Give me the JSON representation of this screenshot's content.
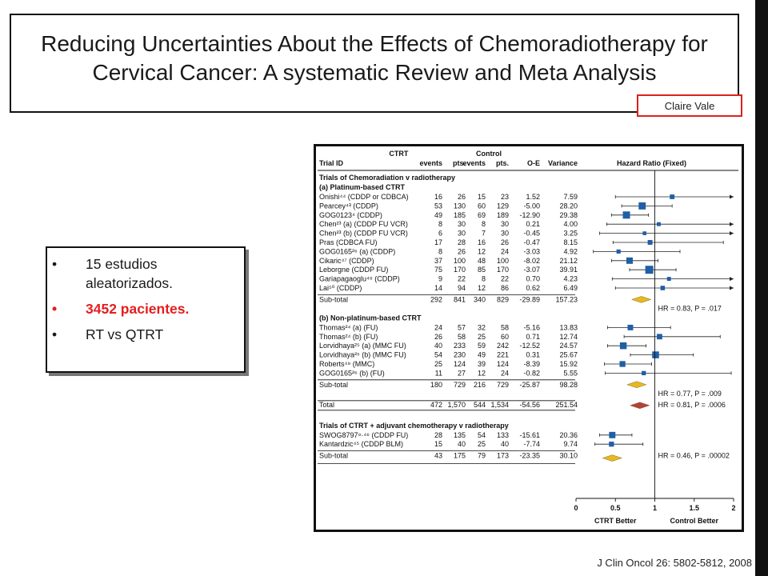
{
  "slide": {
    "title": "Reducing Uncertainties About the Effects of Chemoradiotherapy for Cervical Cancer: A systematic Review and Meta Analysis",
    "author": "Claire Vale",
    "bullets": [
      "15 estudios aleatorizados.",
      "3452 pacientes.",
      "RT vs QTRT"
    ],
    "citation": "J Clin Oncol 26: 5802-5812, 2008",
    "accent_color": "#e31e1e"
  },
  "forest": {
    "headers": {
      "trial_id": "Trial ID",
      "ctrt": "CTRT",
      "control": "Control",
      "events": "events",
      "pts": "pts.",
      "oe": "O-E",
      "variance": "Variance",
      "hr": "Hazard Ratio (Fixed)"
    },
    "section_title": "Trials of Chemoradiation v radiotherapy",
    "groups": [
      {
        "label": "(a) Platinum-based CTRT",
        "rows": [
          {
            "id": "Onishi⁴⁴ (CDDP or CDBCA)",
            "ce": "16",
            "cp": "26",
            "ke": "15",
            "kp": "23",
            "oe": "1.52",
            "var": "7.59",
            "hr": 1.22,
            "lo": 0.5,
            "hi": 2.0
          },
          {
            "id": "Pearcey⁴³ (CDDP)",
            "ce": "53",
            "cp": "130",
            "ke": "60",
            "kp": "129",
            "oe": "-5.00",
            "var": "28.20",
            "hr": 0.84,
            "lo": 0.58,
            "hi": 1.22
          },
          {
            "id": "GOG0123⁴ (CDDP)",
            "ce": "49",
            "cp": "185",
            "ke": "69",
            "kp": "189",
            "oe": "-12.90",
            "var": "29.38",
            "hr": 0.64,
            "lo": 0.45,
            "hi": 0.92
          },
          {
            "id": "Chen²³ (a) (CDDP FU VCR)",
            "ce": "8",
            "cp": "30",
            "ke": "8",
            "kp": "30",
            "oe": "0.21",
            "var": "4.00",
            "hr": 1.05,
            "lo": 0.39,
            "hi": 2.0
          },
          {
            "id": "Chen²³ (b) (CDDP FU VCR)",
            "ce": "6",
            "cp": "30",
            "ke": "7",
            "kp": "30",
            "oe": "-0.45",
            "var": "3.25",
            "hr": 0.87,
            "lo": 0.3,
            "hi": 2.0
          },
          {
            "id": "Pras (CDBCA FU)",
            "ce": "17",
            "cp": "28",
            "ke": "16",
            "kp": "26",
            "oe": "-0.47",
            "var": "8.15",
            "hr": 0.94,
            "lo": 0.47,
            "hi": 1.87
          },
          {
            "id": "GOG0165²⁶ (a) (CDDP)",
            "ce": "8",
            "cp": "26",
            "ke": "12",
            "kp": "24",
            "oe": "-3.03",
            "var": "4.92",
            "hr": 0.54,
            "lo": 0.22,
            "hi": 1.32
          },
          {
            "id": "Cikaric⁴⁷ (CDDP)",
            "ce": "37",
            "cp": "100",
            "ke": "48",
            "kp": "100",
            "oe": "-8.02",
            "var": "21.12",
            "hr": 0.68,
            "lo": 0.45,
            "hi": 1.04
          },
          {
            "id": "Leborgne (CDDP FU)",
            "ce": "75",
            "cp": "170",
            "ke": "85",
            "kp": "170",
            "oe": "-3.07",
            "var": "39.91",
            "hr": 0.93,
            "lo": 0.68,
            "hi": 1.27
          },
          {
            "id": "Gariapagaoglu⁴⁸ (CDDP)",
            "ce": "9",
            "cp": "22",
            "ke": "8",
            "kp": "22",
            "oe": "0.70",
            "var": "4.23",
            "hr": 1.18,
            "lo": 0.46,
            "hi": 2.0
          },
          {
            "id": "Lai⁵⁰ (CDDP)",
            "ce": "14",
            "cp": "94",
            "ke": "12",
            "kp": "86",
            "oe": "0.62",
            "var": "6.49",
            "hr": 1.1,
            "lo": 0.5,
            "hi": 2.0
          }
        ],
        "subtotal": {
          "label": "Sub-total",
          "ce": "292",
          "cp": "841",
          "ke": "340",
          "kp": "829",
          "oe": "-29.89",
          "var": "157.23",
          "hr": 0.83
        },
        "hr_text": "HR = 0.83, P = .017"
      },
      {
        "label": "(b) Non-platinum-based CTRT",
        "rows": [
          {
            "id": "Thomas²⁴ (a) (FU)",
            "ce": "24",
            "cp": "57",
            "ke": "32",
            "kp": "58",
            "oe": "-5.16",
            "var": "13.83",
            "hr": 0.69,
            "lo": 0.4,
            "hi": 1.2
          },
          {
            "id": "Thomas²⁴ (b) (FU)",
            "ce": "26",
            "cp": "58",
            "ke": "25",
            "kp": "60",
            "oe": "0.71",
            "var": "12.74",
            "hr": 1.06,
            "lo": 0.61,
            "hi": 1.83
          },
          {
            "id": "Lorvidhaya²⁵ (a) (MMC FU)",
            "ce": "40",
            "cp": "233",
            "ke": "59",
            "kp": "242",
            "oe": "-12.52",
            "var": "24.57",
            "hr": 0.6,
            "lo": 0.4,
            "hi": 0.89
          },
          {
            "id": "Lorvidhaya²⁵ (b) (MMC FU)",
            "ce": "54",
            "cp": "230",
            "ke": "49",
            "kp": "221",
            "oe": "0.31",
            "var": "25.67",
            "hr": 1.01,
            "lo": 0.69,
            "hi": 1.49
          },
          {
            "id": "Roberts⁴⁹ (MMC)",
            "ce": "25",
            "cp": "124",
            "ke": "39",
            "kp": "124",
            "oe": "-8.39",
            "var": "15.92",
            "hr": 0.59,
            "lo": 0.36,
            "hi": 0.96
          },
          {
            "id": "GOG0165²⁶ (b) (FU)",
            "ce": "11",
            "cp": "27",
            "ke": "12",
            "kp": "24",
            "oe": "-0.82",
            "var": "5.55",
            "hr": 0.86,
            "lo": 0.37,
            "hi": 1.97
          }
        ],
        "subtotal": {
          "label": "Sub-total",
          "ce": "180",
          "cp": "729",
          "ke": "216",
          "kp": "729",
          "oe": "-25.87",
          "var": "98.28",
          "hr": 0.77
        },
        "hr_text": "HR = 0.77, P = .009"
      }
    ],
    "total": {
      "label": "Total",
      "ce": "472",
      "cp": "1,570",
      "ke": "544",
      "kp": "1,534",
      "oe": "-54.56",
      "var": "251.54",
      "hr": 0.81
    },
    "total_hr_text": "HR = 0.81, P = .0006",
    "section2_title": "Trials of CTRT + adjuvant chemotherapy v radiotherapy",
    "group3": {
      "rows": [
        {
          "id": "SWOG8797⁹·⁴⁶ (CDDP FU)",
          "ce": "28",
          "cp": "135",
          "ke": "54",
          "kp": "133",
          "oe": "-15.61",
          "var": "20.36",
          "hr": 0.46,
          "lo": 0.3,
          "hi": 0.71
        },
        {
          "id": "Kantardzic⁴⁵ (CDDP BLM)",
          "ce": "15",
          "cp": "40",
          "ke": "25",
          "kp": "40",
          "oe": "-7.74",
          "var": "9.74",
          "hr": 0.45,
          "lo": 0.24,
          "hi": 0.85
        }
      ],
      "subtotal": {
        "label": "Sub-total",
        "ce": "43",
        "cp": "175",
        "ke": "79",
        "kp": "173",
        "oe": "-23.35",
        "var": "30.10",
        "hr": 0.46
      },
      "hr_text": "HR = 0.46, P = .00002"
    },
    "axis": {
      "min": 0,
      "max": 2,
      "ticks": [
        "0",
        "0.5",
        "1",
        "1.5",
        "2"
      ],
      "left_label": "CTRT Better",
      "right_label": "Control Better"
    },
    "colors": {
      "square": "#1f5fa6",
      "diamond_sub": "#e8b820",
      "diamond_total": "#b5413a"
    }
  }
}
